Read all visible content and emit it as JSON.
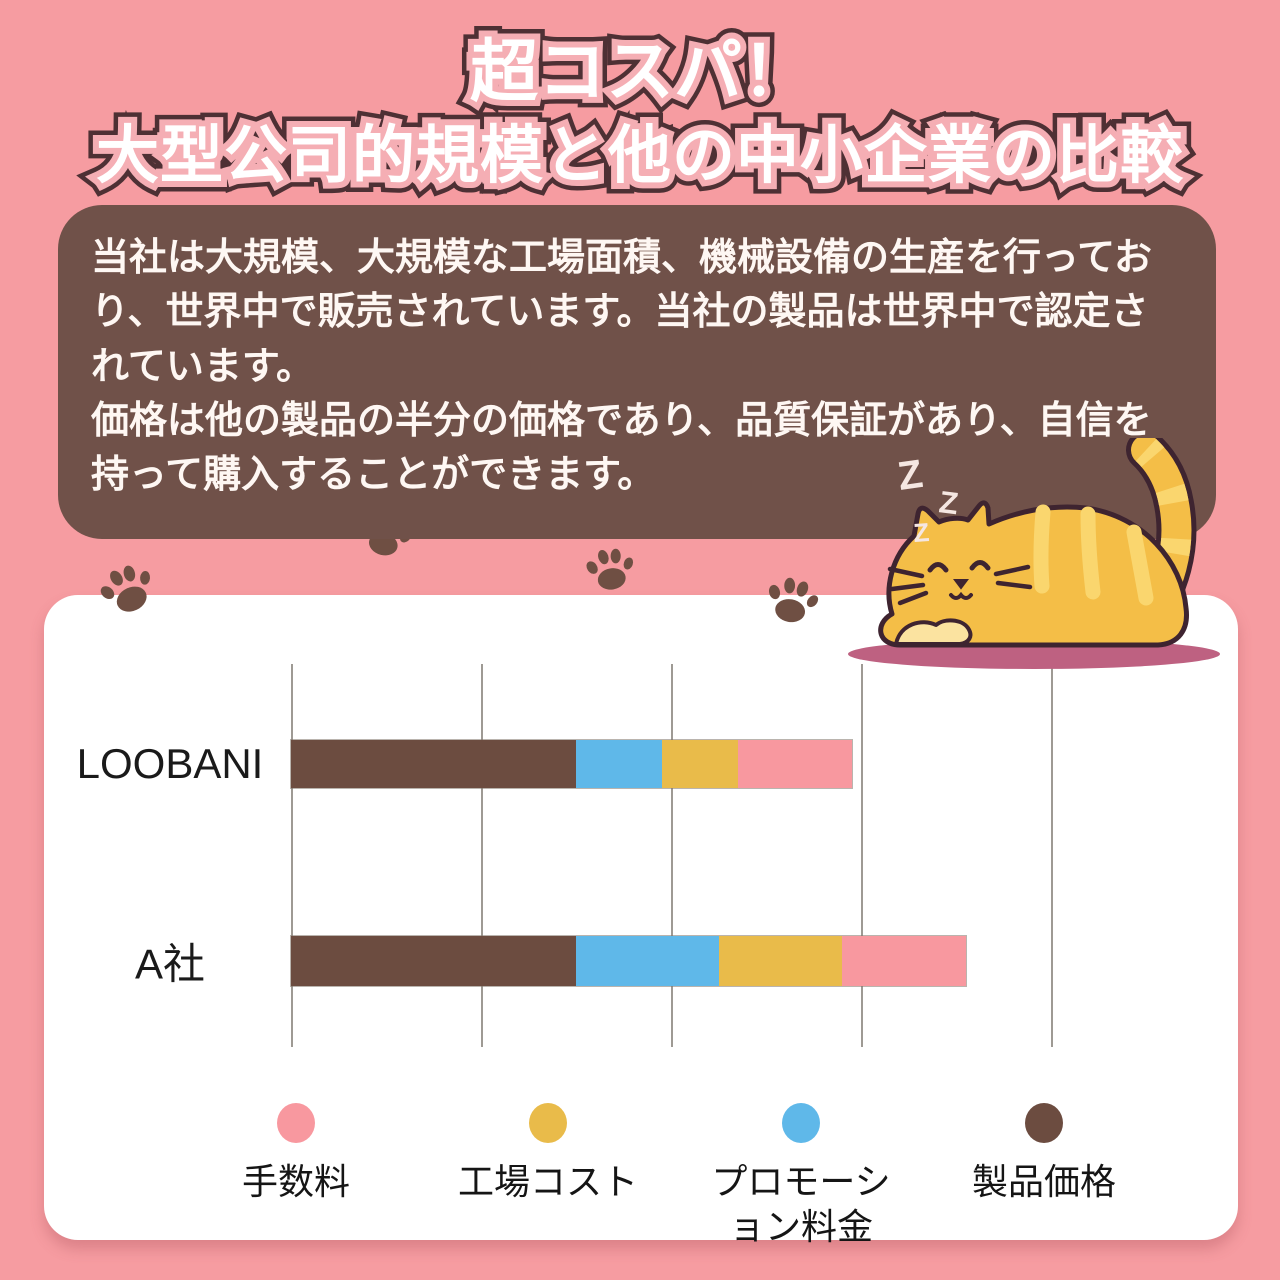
{
  "page": {
    "type": "product-advertisement-infographic",
    "language": "ja",
    "colors": {
      "background": "#F69CA1",
      "title_fill": "#FFFFFF",
      "title_halo": "#F5AEB4",
      "title_outline": "#4E3034",
      "description_box_bg": "#705149",
      "description_text": "#FEF7F3",
      "card_bg": "#FFFFFF",
      "gridline": "#9E9A94",
      "paw_print": "#6F4F43",
      "cat_body": "#F4BE47",
      "cat_stripe": "#FAD66E",
      "cat_outline": "#3E2430",
      "cat_front_paws": "#FBE3A0",
      "cat_shadow_oval": "#BE6181",
      "sleep_text": "#F5E7E2",
      "axis_label_text": "#1A1A1A"
    }
  },
  "title": {
    "line1": "超コスパ！",
    "line2": "大型公司的規模と他の中小企業の比較"
  },
  "description_box": {
    "paragraph1": "当社は大規模、大規模な工場面積、機械設備の生産を行っており、世界中で販売されています。当社の製品は世界中で認定されています。",
    "paragraph2": "価格は他の製品の半分の価格であり、品質保証があり、自信を持って購入することができます。"
  },
  "decor": {
    "sleep_letter": "Z",
    "paw_count": 4
  },
  "chart_data": {
    "type": "bar",
    "orientation": "horizontal",
    "stacked": true,
    "title": "",
    "xlabel": "",
    "ylabel": "",
    "value_unit": "relative units (1 unit = 1 vertical gridline interval; no numeric axis labels are shown in the image)",
    "categories": [
      "LOOBANI",
      "A社"
    ],
    "series": [
      {
        "name": "製品価格",
        "color": "#6C4C40",
        "values": [
          1.5,
          1.5
        ]
      },
      {
        "name": "プロモーション料金",
        "color": "#5FB8E9",
        "values": [
          0.45,
          0.75
        ]
      },
      {
        "name": "工場コスト",
        "color": "#E9BB4A",
        "values": [
          0.4,
          0.65
        ]
      },
      {
        "name": "手数料",
        "color": "#F8989F",
        "values": [
          0.6,
          0.65
        ]
      }
    ],
    "totals_units": {
      "LOOBANI": 2.95,
      "A社": 3.55
    },
    "x_axis": {
      "gridline_count": 5,
      "tick_labels_visible": false
    },
    "legend": {
      "position": "bottom",
      "items": [
        {
          "label": "手数料",
          "display": "手数料",
          "color": "#F8989F"
        },
        {
          "label": "工場コスト",
          "display": "工場コスト",
          "color": "#E9BB4A"
        },
        {
          "label": "プロモーション料金",
          "display": "プロモーシ\nョン料金",
          "color": "#5FB8E9"
        },
        {
          "label": "製品価格",
          "display": "製品価格",
          "color": "#6C4C40"
        }
      ]
    }
  }
}
